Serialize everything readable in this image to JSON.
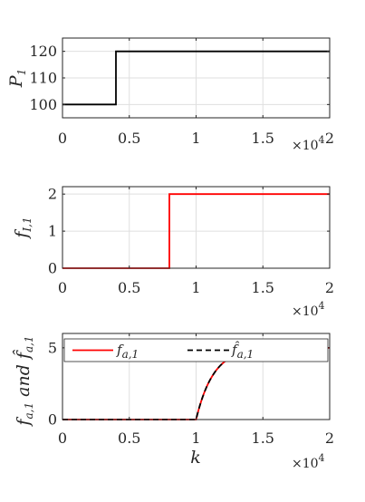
{
  "chart_data": [
    {
      "type": "line",
      "ylabel_main": "P",
      "ylabel_sub": "1",
      "xlim": [
        0,
        20000
      ],
      "ylim": [
        95,
        125
      ],
      "x_ticks": [
        0,
        5000,
        10000,
        15000,
        20000
      ],
      "x_tick_labels": [
        "0",
        "0.5",
        "1",
        "1.5",
        "2"
      ],
      "y_ticks": [
        100,
        110,
        120
      ],
      "y_tick_labels": [
        "100",
        "110",
        "120"
      ],
      "exponent_base": "×10",
      "exponent_power": "4",
      "grid": true,
      "series": [
        {
          "color": "#000000",
          "dash": "solid",
          "x": [
            0,
            4000,
            4000,
            20000
          ],
          "y": [
            100,
            100,
            120,
            120
          ]
        }
      ]
    },
    {
      "type": "line",
      "ylabel_main": "f",
      "ylabel_sub": "I,1",
      "xlim": [
        0,
        20000
      ],
      "ylim": [
        0,
        2.2
      ],
      "x_ticks": [
        0,
        5000,
        10000,
        15000,
        20000
      ],
      "x_tick_labels": [
        "0",
        "0.5",
        "1",
        "1.5",
        "2"
      ],
      "y_ticks": [
        0,
        1,
        2
      ],
      "y_tick_labels": [
        "0",
        "1",
        "2"
      ],
      "exponent_base": "×10",
      "exponent_power": "4",
      "grid": true,
      "series": [
        {
          "color": "#ff0000",
          "dash": "solid",
          "x": [
            0,
            8000,
            8000,
            20000
          ],
          "y": [
            0,
            0,
            2,
            2
          ]
        }
      ]
    },
    {
      "type": "line",
      "ylabel_main": "f",
      "ylabel_sub": "a,1",
      "ylabel_and": " and ",
      "ylabel_hat_main": "f̂",
      "ylabel_hat_sub": "a,1",
      "xlabel": "k",
      "xlim": [
        0,
        20000
      ],
      "ylim": [
        0,
        6
      ],
      "x_ticks": [
        0,
        5000,
        10000,
        15000,
        20000
      ],
      "x_tick_labels": [
        "0",
        "0.5",
        "1",
        "1.5",
        "2"
      ],
      "y_ticks": [
        0,
        5
      ],
      "y_tick_labels": [
        "0",
        "5"
      ],
      "exponent_base": "×10",
      "exponent_power": "4",
      "grid": true,
      "legend": "top",
      "series": [
        {
          "name_main": "f",
          "name_sub": "a,1",
          "color": "#ff0000",
          "dash": "solid",
          "step_at": 10000,
          "final": 5,
          "tau": 1300
        },
        {
          "name_main": "f̂",
          "name_sub": "a,1",
          "color": "#000000",
          "dash": "dashed",
          "step_at": 10000,
          "final": 5,
          "tau": 1300
        }
      ]
    }
  ]
}
